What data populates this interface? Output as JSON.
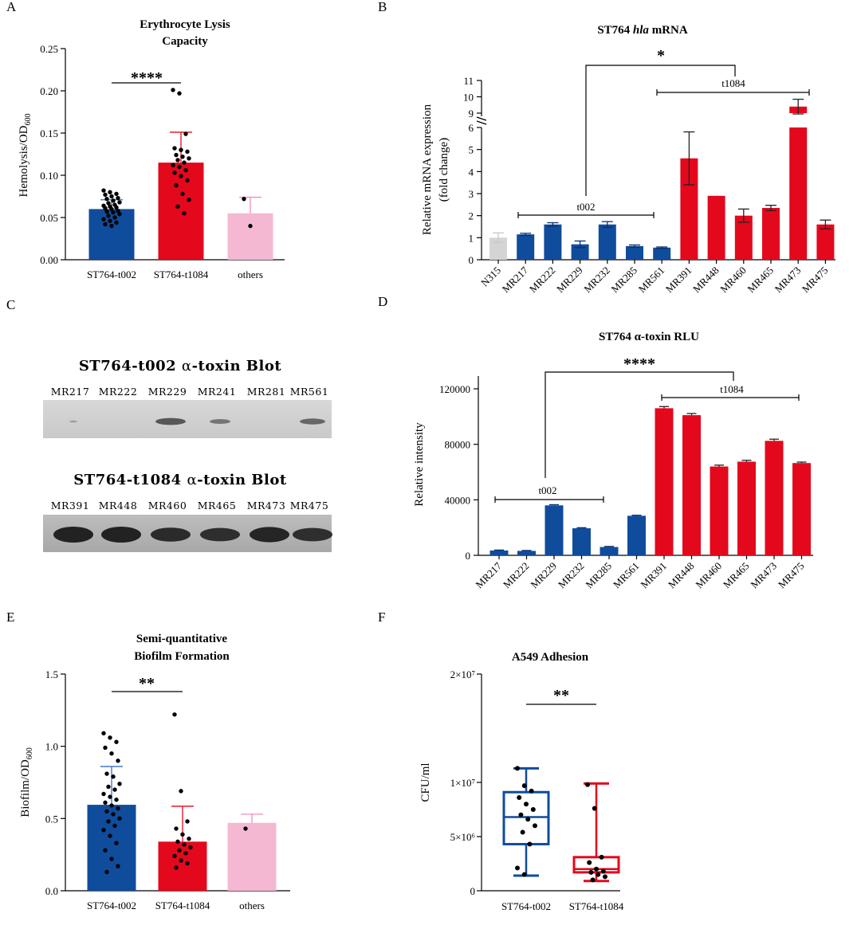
{
  "colors": {
    "t002": "#0f4c9c",
    "t1084": "#e4081d",
    "others": "#f4b8d3",
    "n315": "#d4d4d4",
    "t002_err": "#2f6fc0",
    "t1084_err": "#e4081d",
    "others_err": "#f08cbc"
  },
  "panel_letters": {
    "a": "A",
    "b": "B",
    "c": "C",
    "d": "D",
    "e": "E",
    "f": "F"
  },
  "chart_data": [
    {
      "id": "A",
      "type": "bar",
      "title_line1": "Erythrocyte Lysis",
      "title_line2": "Capacity",
      "ylabel": "Hemolysis/OD",
      "ylabel_sub": "600",
      "categories": [
        "ST764-t002",
        "ST764-t1084",
        "others"
      ],
      "values": [
        0.06,
        0.115,
        0.055
      ],
      "errors": [
        0.011,
        0.036,
        0.019
      ],
      "yticks": [
        "0.00",
        "0.05",
        "0.10",
        "0.15",
        "0.20",
        "0.25"
      ],
      "ylim": [
        0,
        0.25
      ],
      "significance": "****",
      "points": [
        [
          0.082,
          0.08,
          0.078,
          0.077,
          0.075,
          0.073,
          0.072,
          0.07,
          0.068,
          0.067,
          0.065,
          0.064,
          0.063,
          0.062,
          0.061,
          0.06,
          0.058,
          0.057,
          0.056,
          0.054,
          0.052,
          0.05,
          0.048,
          0.046,
          0.044,
          0.042,
          0.04
        ],
        [
          0.201,
          0.197,
          0.149,
          0.132,
          0.13,
          0.128,
          0.124,
          0.122,
          0.12,
          0.118,
          0.115,
          0.112,
          0.11,
          0.106,
          0.103,
          0.099,
          0.094,
          0.088,
          0.078,
          0.071,
          0.063,
          0.055
        ],
        [
          0.072,
          0.04
        ]
      ]
    },
    {
      "id": "B",
      "type": "bar",
      "title_prefix": "ST764 ",
      "title_italic": "hla",
      "title_suffix": " mRNA",
      "ylabel_line1": "Relative mRNA expression",
      "ylabel_line2": "(fold change)",
      "categories": [
        "N315",
        "MR217",
        "MR222",
        "MR229",
        "MR232",
        "MR285",
        "MR561",
        "MR391",
        "MR448",
        "MR460",
        "MR465",
        "MR473",
        "MR475"
      ],
      "groups": [
        "ref",
        "t002",
        "t002",
        "t002",
        "t002",
        "t002",
        "t002",
        "t1084",
        "t1084",
        "t1084",
        "t1084",
        "t1084",
        "t1084"
      ],
      "values": [
        1.0,
        1.15,
        1.6,
        0.7,
        1.6,
        0.62,
        0.55,
        4.6,
        2.9,
        2.0,
        2.35,
        9.4,
        1.6
      ],
      "errors": [
        0.22,
        0.05,
        0.08,
        0.15,
        0.13,
        0.05,
        0.03,
        1.2,
        0.0,
        0.3,
        0.12,
        0.45,
        0.2
      ],
      "yticks_lower": [
        "0",
        "1",
        "2",
        "3",
        "4",
        "5",
        "6"
      ],
      "yticks_upper": [
        "9",
        "10",
        "11"
      ],
      "ylim_lower": [
        0,
        6
      ],
      "ylim_upper": [
        9,
        11
      ],
      "brackets": {
        "t002": "t002",
        "t1084": "t1084"
      },
      "significance": "*"
    },
    {
      "id": "D",
      "type": "bar",
      "title": "ST764 α-toxin RLU",
      "ylabel": "Relative intensity",
      "categories": [
        "MR217",
        "MR222",
        "MR229",
        "MR232",
        "MR285",
        "MR561",
        "MR391",
        "MR448",
        "MR460",
        "MR465",
        "MR473",
        "MR475"
      ],
      "groups": [
        "t002",
        "t002",
        "t002",
        "t002",
        "t002",
        "t002",
        "t1084",
        "t1084",
        "t1084",
        "t1084",
        "t1084",
        "t1084"
      ],
      "values": [
        3500,
        3200,
        36000,
        19500,
        6000,
        28500,
        106000,
        101000,
        64000,
        67500,
        82500,
        66500
      ],
      "errors": [
        300,
        300,
        500,
        400,
        400,
        400,
        1200,
        1200,
        1000,
        1000,
        1200,
        700
      ],
      "yticks": [
        "0",
        "40000",
        "80000",
        "120000"
      ],
      "ylim": [
        0,
        125000
      ],
      "brackets": {
        "t002": "t002",
        "t1084": "t1084"
      },
      "significance": "****"
    },
    {
      "id": "E",
      "type": "bar",
      "title_line1": "Semi-quantitative",
      "title_line2": "Biofilm Formation",
      "ylabel": "Biofilm/OD",
      "ylabel_sub": "600",
      "categories": [
        "ST764-t002",
        "ST764-t1084",
        "others"
      ],
      "values": [
        0.595,
        0.34,
        0.47
      ],
      "errors": [
        0.265,
        0.245,
        0.06
      ],
      "yticks": [
        "0.0",
        "0.5",
        "1.0",
        "1.5"
      ],
      "ylim": [
        0,
        1.5
      ],
      "significance": "**",
      "points": [
        [
          1.09,
          1.06,
          1.03,
          0.99,
          0.95,
          0.9,
          0.81,
          0.79,
          0.74,
          0.72,
          0.7,
          0.67,
          0.65,
          0.63,
          0.61,
          0.59,
          0.57,
          0.55,
          0.53,
          0.5,
          0.48,
          0.45,
          0.42,
          0.38,
          0.33,
          0.28,
          0.22,
          0.17,
          0.13
        ],
        [
          1.22,
          0.69,
          0.48,
          0.43,
          0.39,
          0.36,
          0.34,
          0.32,
          0.3,
          0.28,
          0.26,
          0.24,
          0.21,
          0.19,
          0.16
        ],
        [
          0.43
        ]
      ]
    },
    {
      "id": "F",
      "type": "box",
      "title": "A549 Adhesion",
      "ylabel": "CFU/ml",
      "categories": [
        "ST764-t002",
        "ST764-t1084"
      ],
      "yticks": [
        "0",
        "5×10⁶",
        "1×10⁷",
        "2×10⁷"
      ],
      "ylim": [
        0,
        20000000
      ],
      "significance": "**",
      "boxes": [
        {
          "min": 1400000,
          "q1": 4300000,
          "median": 6800000,
          "q3": 9100000,
          "max": 11300000
        },
        {
          "min": 900000,
          "q1": 1700000,
          "median": 2000000,
          "q3": 3100000,
          "max": 9900000
        }
      ],
      "points": [
        [
          11300000,
          9700000,
          9200000,
          8600000,
          8000000,
          7500000,
          7000000,
          6600000,
          6000000,
          5400000,
          4300000,
          2100000,
          1500000
        ],
        [
          9800000,
          7600000,
          3100000,
          2600000,
          2000000,
          1800000,
          1700000,
          1500000,
          1300000,
          1000000
        ]
      ]
    }
  ],
  "blots": [
    {
      "title_strain": "ST764-t002",
      "title_alpha": "α",
      "title_rest": "-toxin Blot",
      "lanes": [
        "MR217",
        "MR222",
        "MR229",
        "MR241",
        "MR281",
        "MR561"
      ],
      "intensity": [
        0.05,
        0.0,
        0.75,
        0.45,
        0.0,
        0.6
      ]
    },
    {
      "title_strain": "ST764-t1084",
      "title_alpha": "α",
      "title_rest": "-toxin Blot",
      "lanes": [
        "MR391",
        "MR448",
        "MR460",
        "MR465",
        "MR473",
        "MR475"
      ],
      "intensity": [
        1.0,
        1.0,
        0.85,
        0.8,
        0.95,
        0.8
      ]
    }
  ]
}
